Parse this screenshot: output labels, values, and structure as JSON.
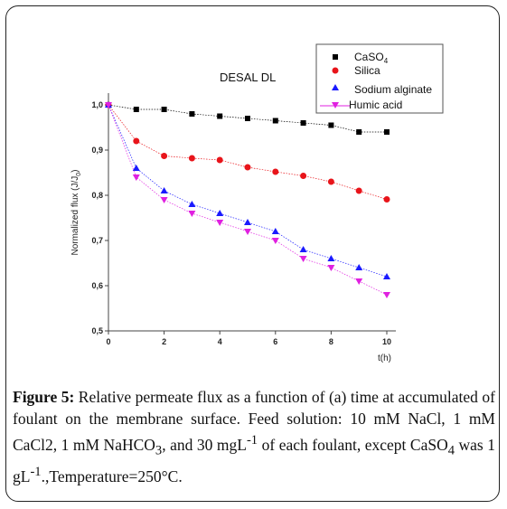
{
  "chart_data": {
    "type": "scatter",
    "title": "DESAL DL",
    "xlabel": "t(h)",
    "ylabel": "Normalized flux (J/J",
    "ylabel_sub": "0",
    "ylabel_close": ")",
    "xlim": [
      0,
      10
    ],
    "ylim": [
      0.5,
      1.0
    ],
    "x_ticks": [
      "0",
      "2",
      "4",
      "6",
      "8",
      "10"
    ],
    "y_ticks": [
      "0,5",
      "0,6",
      "0,7",
      "0,8",
      "0,9",
      "1,0"
    ],
    "x": [
      0,
      1,
      2,
      3,
      4,
      5,
      6,
      7,
      8,
      9,
      10
    ],
    "legend_position": "top-right",
    "series": [
      {
        "name": "CaSO",
        "name_sub": "4",
        "marker": "square",
        "color": "#000000",
        "values": [
          1.0,
          0.99,
          0.99,
          0.98,
          0.975,
          0.97,
          0.965,
          0.96,
          0.955,
          0.94,
          0.94
        ]
      },
      {
        "name": "Silica",
        "marker": "circle",
        "color": "#e8141a",
        "values": [
          1.0,
          0.92,
          0.887,
          0.882,
          0.878,
          0.862,
          0.852,
          0.843,
          0.83,
          0.81,
          0.791
        ]
      },
      {
        "name": "Sodium alginate",
        "marker": "triangle-up",
        "color": "#1a1aff",
        "values": [
          1.0,
          0.86,
          0.81,
          0.78,
          0.76,
          0.74,
          0.72,
          0.68,
          0.66,
          0.64,
          0.62
        ]
      },
      {
        "name": "Humic acid",
        "marker": "triangle-down",
        "color": "#e020e0",
        "values": [
          1.0,
          0.84,
          0.79,
          0.76,
          0.74,
          0.72,
          0.7,
          0.66,
          0.64,
          0.61,
          0.58
        ]
      }
    ]
  },
  "caption": {
    "label": "Figure 5:",
    "t1": " Relative permeate flux as a function of (a) time at accumulated of foulant on the membrane surface. Feed solution: 10 mM NaCl, 1 mM CaCl2, 1 mM NaHCO",
    "sub1": "3",
    "t2": ", and 30 mgL",
    "sup1": "-1",
    "t3": " of each foulant, except CaSO",
    "sub2": "4",
    "t4": " was 1 gL",
    "sup2": "-1",
    "t5": ".,Temperature=250°C."
  }
}
